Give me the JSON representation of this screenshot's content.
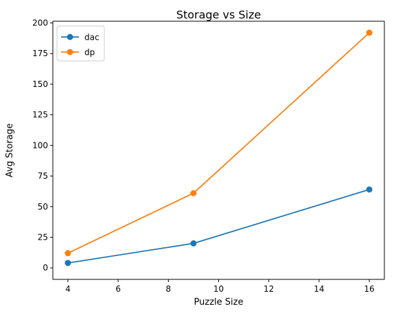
{
  "chart_data": {
    "type": "line",
    "title": "Storage vs Size",
    "xlabel": "Puzzle Size",
    "ylabel": "Avg Storage",
    "x": [
      4,
      9,
      16
    ],
    "xlim": [
      3.4,
      16.6
    ],
    "ylim": [
      -9.4,
      201.4
    ],
    "xticks": [
      4,
      6,
      8,
      10,
      12,
      14,
      16
    ],
    "yticks": [
      0,
      25,
      50,
      75,
      100,
      125,
      150,
      175,
      200
    ],
    "grid": false,
    "legend": "upper-left",
    "series": [
      {
        "name": "dac",
        "color": "#1f77b4",
        "values": [
          4,
          20,
          64
        ]
      },
      {
        "name": "dp",
        "color": "#ff7f0e",
        "values": [
          12,
          61,
          192
        ]
      }
    ]
  }
}
